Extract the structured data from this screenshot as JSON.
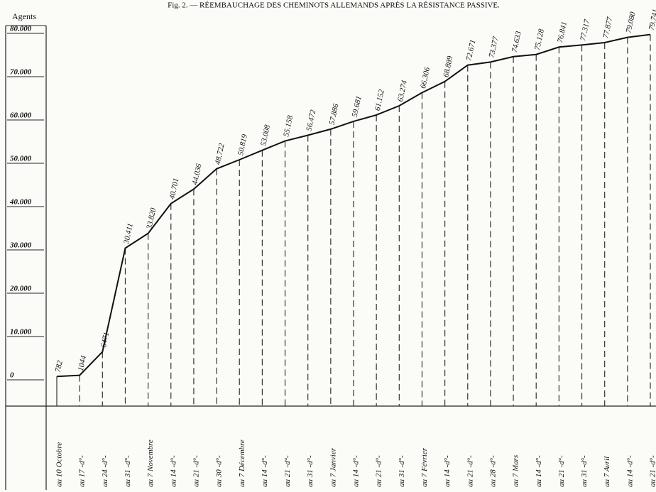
{
  "chart_data": {
    "type": "line",
    "title": "Fig. 2. — RÉEMBAUCHAGE DES CHEMINOTS ALLEMANDS APRÈS LA RÉSISTANCE PASSIVE.",
    "y_label": "Agents",
    "categories": [
      "au 10 Octobre",
      "au 17 -d°-",
      "au 24 -d°-",
      "au 31 -d°-",
      "au 7 Novembre",
      "au 14 -d°-",
      "au 21 -d°-",
      "au 30 -d°-",
      "au 7 Décembre",
      "au 14 -d°-",
      "au 21 -d°-",
      "au 31 -d°-",
      "au 7 Janvier",
      "au 14 -d°-",
      "au 21 -d°-",
      "au 31 -d°-",
      "au 7 Février",
      "au 14 -d°-",
      "au 21 -d°-",
      "au 28 -d°-",
      "au 7 Mars",
      "au 14 -d°-",
      "au 21 -d°-",
      "au 31 -d°-",
      "au 7 Avril",
      "au 14 -d°-",
      "au 21 -d°-"
    ],
    "values": [
      782,
      1044,
      6471,
      30411,
      33820,
      40701,
      44036,
      48722,
      50819,
      53008,
      55158,
      56472,
      57886,
      59681,
      61152,
      63274,
      66306,
      68889,
      72671,
      73377,
      74633,
      75128,
      76841,
      77317,
      77877,
      79080,
      79741
    ],
    "value_labels": [
      "782",
      "1044",
      "6471",
      "30.411",
      "33.820",
      "40.701",
      "44.036",
      "48.722",
      "50.819",
      "53.008",
      "55.158",
      "56.472",
      "57.886",
      "59.681",
      "61.152",
      "63.274",
      "66.306",
      "68.889",
      "72.671",
      "73.377",
      "74.633",
      "75.128",
      "76.841",
      "77.317",
      "77.877",
      "79.080",
      "79.741"
    ],
    "color": "#111111",
    "ylim": [
      0,
      80000
    ],
    "yticks": [
      {
        "value": 0,
        "label": "0"
      },
      {
        "value": 10000,
        "label": "10.000"
      },
      {
        "value": 20000,
        "label": "20.000"
      },
      {
        "value": 30000,
        "label": "30.000"
      },
      {
        "value": 40000,
        "label": "40.000"
      },
      {
        "value": 50000,
        "label": "50.000"
      },
      {
        "value": 60000,
        "label": "60.000"
      },
      {
        "value": 70000,
        "label": "70.000"
      },
      {
        "value": 80000,
        "label": "80.000"
      }
    ]
  }
}
